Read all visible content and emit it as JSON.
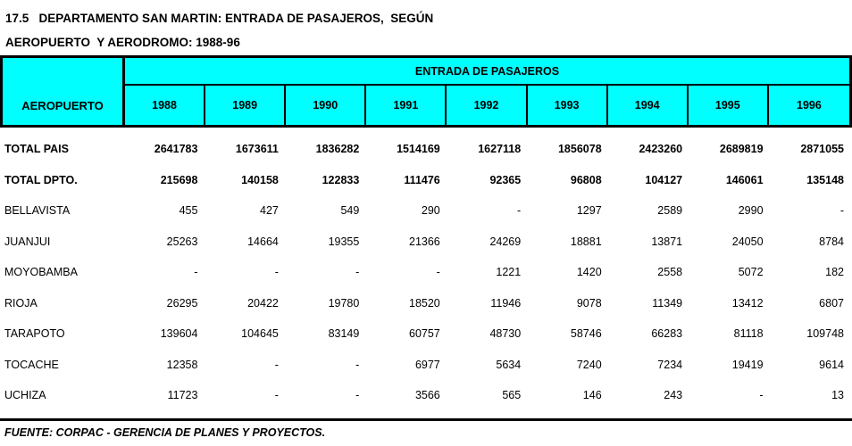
{
  "title": {
    "line1": "17.5   DEPARTAMENTO SAN MARTIN: ENTRADA DE PASAJEROS,  SEGÚN",
    "line2": "AEROPUERTO  Y AERODROMO: 1988-96"
  },
  "table": {
    "corner_header": "AEROPUERTO",
    "group_header": "ENTRADA DE PASAJEROS",
    "years": [
      "1988",
      "1989",
      "1990",
      "1991",
      "1992",
      "1993",
      "1994",
      "1995",
      "1996"
    ],
    "rows": [
      {
        "label": "TOTAL PAIS",
        "bold": true,
        "values": [
          "2641783",
          "1673611",
          "1836282",
          "1514169",
          "1627118",
          "1856078",
          "2423260",
          "2689819",
          "2871055"
        ]
      },
      {
        "label": "TOTAL DPTO.",
        "bold": true,
        "values": [
          "215698",
          "140158",
          "122833",
          "111476",
          "92365",
          "96808",
          "104127",
          "146061",
          "135148"
        ]
      },
      {
        "label": "BELLAVISTA",
        "bold": false,
        "values": [
          "455",
          "427",
          "549",
          "290",
          "-",
          "1297",
          "2589",
          "2990",
          "-"
        ]
      },
      {
        "label": "JUANJUI",
        "bold": false,
        "values": [
          "25263",
          "14664",
          "19355",
          "21366",
          "24269",
          "18881",
          "13871",
          "24050",
          "8784"
        ]
      },
      {
        "label": "MOYOBAMBA",
        "bold": false,
        "values": [
          "-",
          "-",
          "-",
          "-",
          "1221",
          "1420",
          "2558",
          "5072",
          "182"
        ]
      },
      {
        "label": "RIOJA",
        "bold": false,
        "values": [
          "26295",
          "20422",
          "19780",
          "18520",
          "11946",
          "9078",
          "11349",
          "13412",
          "6807"
        ]
      },
      {
        "label": "TARAPOTO",
        "bold": false,
        "values": [
          "139604",
          "104645",
          "83149",
          "60757",
          "48730",
          "58746",
          "66283",
          "81118",
          "109748"
        ]
      },
      {
        "label": "TOCACHE",
        "bold": false,
        "values": [
          "12358",
          "-",
          "-",
          "6977",
          "5634",
          "7240",
          "7234",
          "19419",
          "9614"
        ]
      },
      {
        "label": "UCHIZA",
        "bold": false,
        "values": [
          "11723",
          "-",
          "-",
          "3566",
          "565",
          "146",
          "243",
          "-",
          "13"
        ]
      }
    ]
  },
  "footer": {
    "source": "FUENTE: CORPAC - GERENCIA DE PLANES Y PROYECTOS."
  },
  "colors": {
    "header_bg": "#00FFFF",
    "border": "#000000",
    "text": "#000000"
  }
}
